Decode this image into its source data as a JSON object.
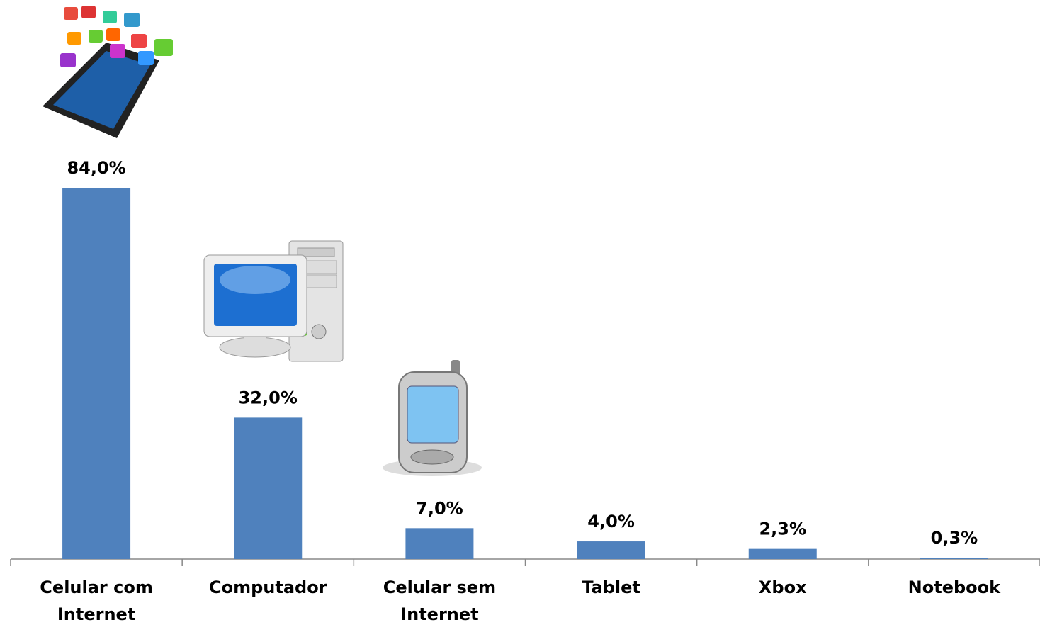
{
  "chart_data": {
    "type": "bar",
    "categories": [
      "Celular com Internet",
      "Computador",
      "Celular sem Internet",
      "Tablet",
      "Xbox",
      "Notebook"
    ],
    "values": [
      84.0,
      32.0,
      7.0,
      4.0,
      2.3,
      0.3
    ],
    "value_labels": [
      "84,0%",
      "32,0%",
      "7,0%",
      "4,0%",
      "2,3%",
      "0,3%"
    ],
    "color": "#4f81bd"
  }
}
